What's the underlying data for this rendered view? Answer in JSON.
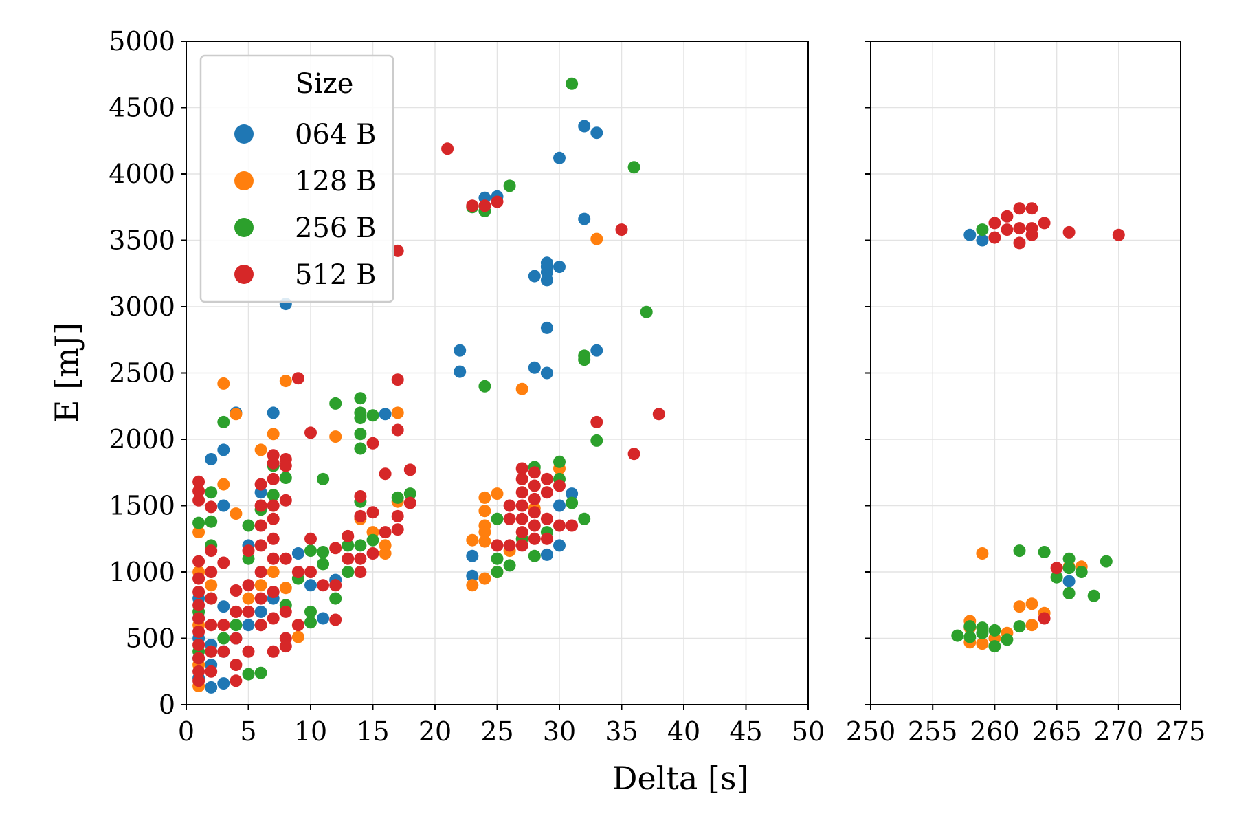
{
  "chart_data": {
    "type": "scatter",
    "ylabel": "E [mJ]",
    "xlabel": "Delta [s]",
    "ylim": [
      0,
      5000
    ],
    "yticks": [
      0,
      500,
      1000,
      1500,
      2000,
      2500,
      3000,
      3500,
      4000,
      4500,
      5000
    ],
    "panels": [
      {
        "name": "left",
        "xlim": [
          0,
          50
        ],
        "xticks": [
          0,
          5,
          10,
          15,
          20,
          25,
          30,
          35,
          40,
          45,
          50
        ]
      },
      {
        "name": "right",
        "xlim": [
          250,
          275
        ],
        "xticks": [
          250,
          255,
          260,
          265,
          270,
          275
        ]
      }
    ],
    "grid": true,
    "legend": {
      "title": "Size",
      "position": "top-left"
    },
    "series": [
      {
        "name": "064 B",
        "color": "#1f77b4",
        "points": [
          [
            1,
            200
          ],
          [
            1,
            350
          ],
          [
            1,
            500
          ],
          [
            1,
            650
          ],
          [
            1,
            800
          ],
          [
            2,
            130
          ],
          [
            2,
            300
          ],
          [
            2,
            450
          ],
          [
            2,
            1850
          ],
          [
            3,
            160
          ],
          [
            3,
            400
          ],
          [
            3,
            740
          ],
          [
            3,
            1500
          ],
          [
            3,
            1920
          ],
          [
            4,
            2200
          ],
          [
            4,
            500
          ],
          [
            5,
            1200
          ],
          [
            5,
            600
          ],
          [
            6,
            1600
          ],
          [
            6,
            700
          ],
          [
            7,
            2200
          ],
          [
            7,
            800
          ],
          [
            8,
            3020
          ],
          [
            9,
            1140
          ],
          [
            10,
            900
          ],
          [
            11,
            650
          ],
          [
            12,
            940
          ],
          [
            16,
            2190
          ],
          [
            22,
            2670
          ],
          [
            22,
            2510
          ],
          [
            23,
            1120
          ],
          [
            23,
            970
          ],
          [
            24,
            3820
          ],
          [
            25,
            3830
          ],
          [
            28,
            2540
          ],
          [
            28,
            3230
          ],
          [
            29,
            2500
          ],
          [
            29,
            2840
          ],
          [
            29,
            3200
          ],
          [
            29,
            3260
          ],
          [
            29,
            3300
          ],
          [
            29,
            3330
          ],
          [
            29,
            1130
          ],
          [
            30,
            4120
          ],
          [
            30,
            3300
          ],
          [
            30,
            1200
          ],
          [
            30,
            1500
          ],
          [
            31,
            1590
          ],
          [
            32,
            4360
          ],
          [
            32,
            3660
          ],
          [
            33,
            4310
          ],
          [
            33,
            2670
          ],
          [
            258,
            3540
          ],
          [
            259,
            3500
          ],
          [
            266,
            930
          ]
        ]
      },
      {
        "name": "128 B",
        "color": "#ff7f0e",
        "points": [
          [
            1,
            140
          ],
          [
            1,
            300
          ],
          [
            1,
            600
          ],
          [
            1,
            1300
          ],
          [
            1,
            1000
          ],
          [
            2,
            400
          ],
          [
            2,
            900
          ],
          [
            3,
            2420
          ],
          [
            3,
            1660
          ],
          [
            3,
            600
          ],
          [
            4,
            2190
          ],
          [
            4,
            1440
          ],
          [
            4,
            700
          ],
          [
            5,
            800
          ],
          [
            6,
            1920
          ],
          [
            6,
            900
          ],
          [
            7,
            2040
          ],
          [
            7,
            1000
          ],
          [
            8,
            2440
          ],
          [
            8,
            880
          ],
          [
            9,
            510
          ],
          [
            9,
            600
          ],
          [
            12,
            2020
          ],
          [
            14,
            1400
          ],
          [
            15,
            1300
          ],
          [
            16,
            1200
          ],
          [
            16,
            1140
          ],
          [
            17,
            2200
          ],
          [
            17,
            1530
          ],
          [
            23,
            900
          ],
          [
            23,
            1240
          ],
          [
            24,
            1560
          ],
          [
            24,
            1460
          ],
          [
            24,
            1350
          ],
          [
            24,
            1300
          ],
          [
            24,
            1230
          ],
          [
            24,
            950
          ],
          [
            25,
            1590
          ],
          [
            25,
            1000
          ],
          [
            26,
            1160
          ],
          [
            27,
            2380
          ],
          [
            28,
            1480
          ],
          [
            30,
            1780
          ],
          [
            33,
            3510
          ],
          [
            258,
            580
          ],
          [
            258,
            470
          ],
          [
            258,
            630
          ],
          [
            259,
            460
          ],
          [
            259,
            1140
          ],
          [
            260,
            500
          ],
          [
            261,
            540
          ],
          [
            262,
            740
          ],
          [
            263,
            760
          ],
          [
            263,
            600
          ],
          [
            264,
            690
          ],
          [
            266,
            1040
          ],
          [
            267,
            1040
          ]
        ]
      },
      {
        "name": "256 B",
        "color": "#2ca02c",
        "points": [
          [
            1,
            1370
          ],
          [
            1,
            700
          ],
          [
            1,
            400
          ],
          [
            2,
            1600
          ],
          [
            2,
            1380
          ],
          [
            2,
            1200
          ],
          [
            2,
            800
          ],
          [
            3,
            2130
          ],
          [
            3,
            500
          ],
          [
            4,
            600
          ],
          [
            5,
            1350
          ],
          [
            5,
            1100
          ],
          [
            5,
            230
          ],
          [
            6,
            240
          ],
          [
            6,
            1470
          ],
          [
            7,
            1800
          ],
          [
            7,
            1580
          ],
          [
            8,
            1710
          ],
          [
            8,
            750
          ],
          [
            9,
            950
          ],
          [
            10,
            620
          ],
          [
            10,
            700
          ],
          [
            10,
            1160
          ],
          [
            11,
            1700
          ],
          [
            11,
            1150
          ],
          [
            11,
            1060
          ],
          [
            12,
            2270
          ],
          [
            12,
            800
          ],
          [
            13,
            1000
          ],
          [
            13,
            1200
          ],
          [
            14,
            2310
          ],
          [
            14,
            2200
          ],
          [
            14,
            2160
          ],
          [
            14,
            2040
          ],
          [
            14,
            1930
          ],
          [
            14,
            1530
          ],
          [
            14,
            1200
          ],
          [
            15,
            2180
          ],
          [
            15,
            1240
          ],
          [
            17,
            1560
          ],
          [
            18,
            1590
          ],
          [
            23,
            3750
          ],
          [
            24,
            3720
          ],
          [
            24,
            2400
          ],
          [
            25,
            1400
          ],
          [
            25,
            1100
          ],
          [
            25,
            1000
          ],
          [
            26,
            3910
          ],
          [
            26,
            1050
          ],
          [
            27,
            1250
          ],
          [
            28,
            1790
          ],
          [
            28,
            1120
          ],
          [
            29,
            1300
          ],
          [
            30,
            1830
          ],
          [
            30,
            1700
          ],
          [
            31,
            1520
          ],
          [
            31,
            4680
          ],
          [
            32,
            2630
          ],
          [
            32,
            2600
          ],
          [
            32,
            1400
          ],
          [
            33,
            1990
          ],
          [
            36,
            4050
          ],
          [
            37,
            2960
          ],
          [
            257,
            520
          ],
          [
            258,
            590
          ],
          [
            258,
            510
          ],
          [
            259,
            580
          ],
          [
            259,
            540
          ],
          [
            259,
            3580
          ],
          [
            260,
            560
          ],
          [
            260,
            440
          ],
          [
            261,
            490
          ],
          [
            262,
            590
          ],
          [
            262,
            1160
          ],
          [
            264,
            1150
          ],
          [
            265,
            960
          ],
          [
            266,
            1100
          ],
          [
            266,
            1030
          ],
          [
            266,
            840
          ],
          [
            267,
            1000
          ],
          [
            268,
            820
          ],
          [
            269,
            1080
          ]
        ]
      },
      {
        "name": "512 B",
        "color": "#d62728",
        "points": [
          [
            1,
            1680
          ],
          [
            1,
            1610
          ],
          [
            1,
            1540
          ],
          [
            1,
            1080
          ],
          [
            1,
            950
          ],
          [
            1,
            850
          ],
          [
            1,
            750
          ],
          [
            1,
            650
          ],
          [
            1,
            550
          ],
          [
            1,
            450
          ],
          [
            1,
            350
          ],
          [
            1,
            250
          ],
          [
            1,
            180
          ],
          [
            2,
            1490
          ],
          [
            2,
            1160
          ],
          [
            2,
            1000
          ],
          [
            2,
            800
          ],
          [
            2,
            600
          ],
          [
            2,
            400
          ],
          [
            2,
            250
          ],
          [
            3,
            1070
          ],
          [
            3,
            600
          ],
          [
            3,
            400
          ],
          [
            4,
            860
          ],
          [
            4,
            700
          ],
          [
            4,
            500
          ],
          [
            4,
            300
          ],
          [
            4,
            180
          ],
          [
            5,
            1160
          ],
          [
            5,
            900
          ],
          [
            5,
            700
          ],
          [
            5,
            400
          ],
          [
            6,
            1660
          ],
          [
            6,
            1500
          ],
          [
            6,
            1350
          ],
          [
            6,
            1200
          ],
          [
            6,
            1000
          ],
          [
            6,
            800
          ],
          [
            6,
            600
          ],
          [
            7,
            1880
          ],
          [
            7,
            1820
          ],
          [
            7,
            1700
          ],
          [
            7,
            1500
          ],
          [
            7,
            1400
          ],
          [
            7,
            1250
          ],
          [
            7,
            1100
          ],
          [
            7,
            850
          ],
          [
            7,
            650
          ],
          [
            7,
            400
          ],
          [
            8,
            1850
          ],
          [
            8,
            1800
          ],
          [
            8,
            1540
          ],
          [
            8,
            1100
          ],
          [
            8,
            700
          ],
          [
            8,
            500
          ],
          [
            8,
            440
          ],
          [
            9,
            2460
          ],
          [
            9,
            1000
          ],
          [
            9,
            600
          ],
          [
            10,
            2050
          ],
          [
            10,
            1250
          ],
          [
            10,
            1000
          ],
          [
            11,
            900
          ],
          [
            12,
            1180
          ],
          [
            12,
            900
          ],
          [
            12,
            640
          ],
          [
            13,
            1270
          ],
          [
            13,
            1100
          ],
          [
            14,
            1570
          ],
          [
            14,
            1420
          ],
          [
            14,
            1100
          ],
          [
            14,
            1000
          ],
          [
            15,
            1970
          ],
          [
            15,
            1450
          ],
          [
            15,
            1140
          ],
          [
            16,
            1740
          ],
          [
            16,
            1300
          ],
          [
            17,
            3420
          ],
          [
            17,
            2450
          ],
          [
            17,
            2070
          ],
          [
            17,
            1420
          ],
          [
            17,
            1320
          ],
          [
            18,
            1770
          ],
          [
            18,
            1520
          ],
          [
            21,
            4190
          ],
          [
            23,
            3760
          ],
          [
            24,
            3760
          ],
          [
            25,
            3790
          ],
          [
            25,
            1200
          ],
          [
            26,
            1500
          ],
          [
            26,
            1400
          ],
          [
            26,
            1200
          ],
          [
            27,
            1780
          ],
          [
            27,
            1700
          ],
          [
            27,
            1600
          ],
          [
            27,
            1500
          ],
          [
            27,
            1400
          ],
          [
            27,
            1300
          ],
          [
            27,
            1200
          ],
          [
            28,
            1750
          ],
          [
            28,
            1650
          ],
          [
            28,
            1550
          ],
          [
            28,
            1450
          ],
          [
            28,
            1350
          ],
          [
            28,
            1250
          ],
          [
            29,
            1700
          ],
          [
            29,
            1600
          ],
          [
            29,
            1400
          ],
          [
            29,
            1250
          ],
          [
            30,
            1650
          ],
          [
            30,
            1350
          ],
          [
            31,
            1350
          ],
          [
            33,
            2130
          ],
          [
            35,
            3580
          ],
          [
            36,
            1890
          ],
          [
            38,
            2190
          ],
          [
            260,
            3630
          ],
          [
            260,
            3520
          ],
          [
            261,
            3680
          ],
          [
            261,
            3580
          ],
          [
            262,
            3740
          ],
          [
            262,
            3590
          ],
          [
            262,
            3480
          ],
          [
            263,
            3740
          ],
          [
            263,
            3590
          ],
          [
            263,
            3540
          ],
          [
            264,
            3630
          ],
          [
            266,
            3560
          ],
          [
            270,
            3540
          ],
          [
            264,
            650
          ],
          [
            265,
            1030
          ]
        ]
      }
    ]
  }
}
